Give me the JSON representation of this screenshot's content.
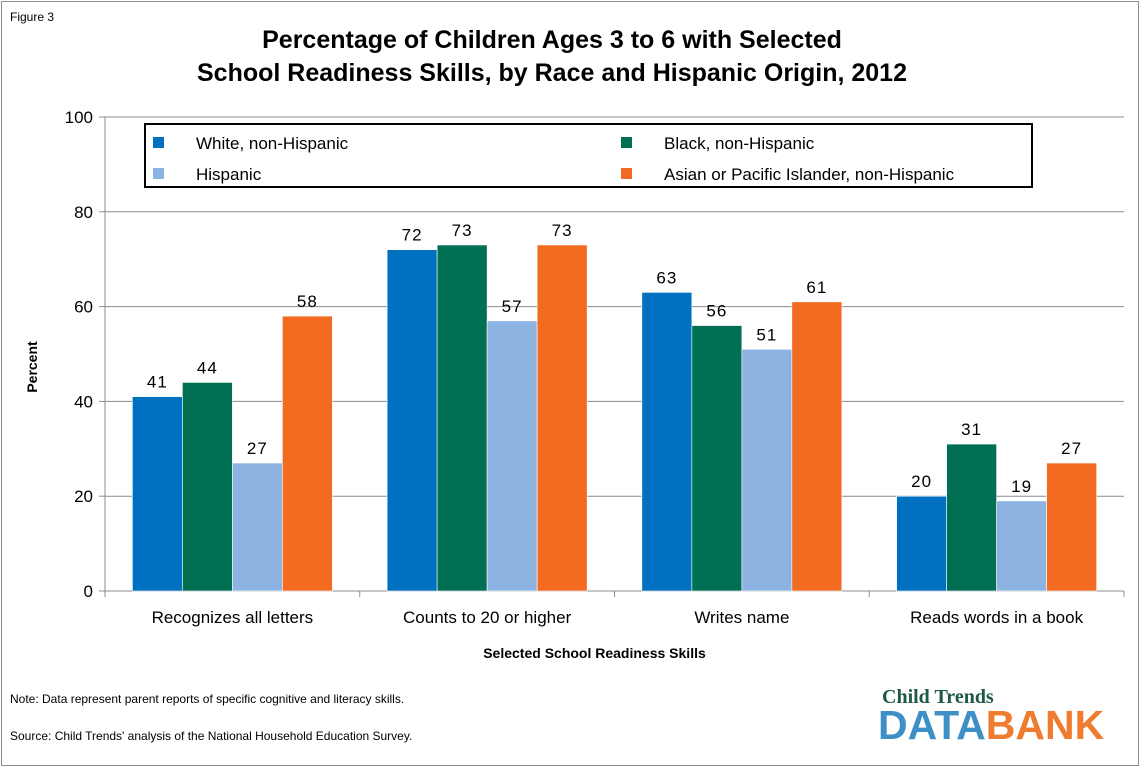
{
  "figure_label": "Figure 3",
  "title_line1": "Percentage of Children Ages 3 to 6 with Selected",
  "title_line2": "School Readiness Skills, by Race and Hispanic Origin, 2012",
  "note": "Note: Data represent parent reports of specific cognitive and literacy skills.",
  "source": "Source: Child Trends' analysis of the National Household Education Survey.",
  "logo": {
    "top": "Child Trends",
    "data": "DATA",
    "bank": "BANK"
  },
  "chart_data": {
    "type": "bar",
    "title": "Percentage of Children Ages 3 to 6 with Selected School Readiness Skills, by Race and Hispanic Origin, 2012",
    "xlabel": "Selected School Readiness Skills",
    "ylabel": "Percent",
    "ylim": [
      0,
      100
    ],
    "yticks": [
      0,
      20,
      40,
      60,
      80,
      100
    ],
    "grid": true,
    "legend_position": "top",
    "categories": [
      "Recognizes all letters",
      "Counts to 20 or higher",
      "Writes name",
      "Reads words in a book"
    ],
    "series": [
      {
        "name": "White, non-Hispanic",
        "color": "#0070c0",
        "values": [
          41,
          72,
          63,
          20
        ]
      },
      {
        "name": "Black, non-Hispanic",
        "color": "#006f54",
        "values": [
          44,
          73,
          56,
          31
        ]
      },
      {
        "name": "Hispanic",
        "color": "#8db3e2",
        "values": [
          27,
          57,
          51,
          19
        ]
      },
      {
        "name": "Asian or Pacific Islander, non-Hispanic",
        "color": "#f26b21",
        "values": [
          58,
          73,
          61,
          27
        ]
      }
    ]
  }
}
